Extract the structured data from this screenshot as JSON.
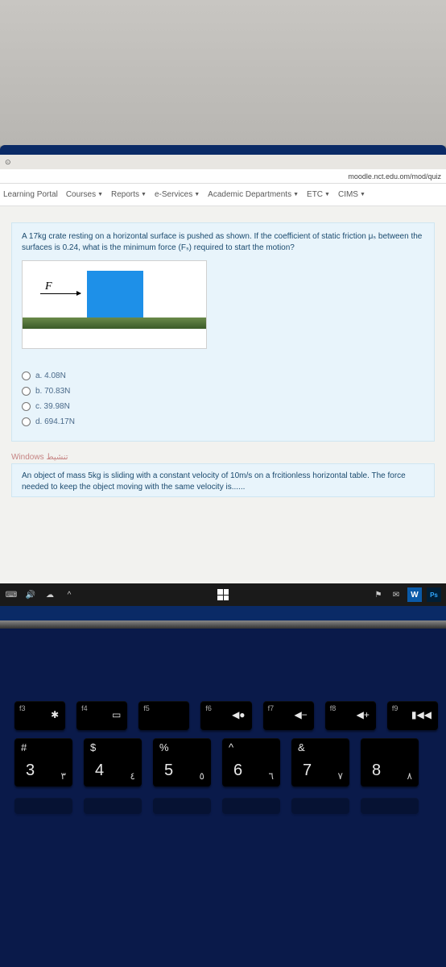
{
  "browser": {
    "url": "moodle.nct.edu.om/mod/quiz",
    "tab_icon": "⊙"
  },
  "nav": {
    "brand": "Learning Portal",
    "items": [
      "Courses",
      "Reports",
      "e-Services",
      "Academic Departments",
      "ETC",
      "CIMS"
    ]
  },
  "question1": {
    "text": "A 17kg crate resting on a horizontal surface is pushed as shown. If the coefficient of static friction μₛ between the surfaces is 0.24, what is the minimum force (Fₛ) required to start the motion?",
    "force_label": "F",
    "options": [
      {
        "key": "a",
        "label": "a. 4.08N"
      },
      {
        "key": "b",
        "label": "b. 70.83N"
      },
      {
        "key": "c",
        "label": "c. 39.98N"
      },
      {
        "key": "d",
        "label": "d. 694.17N"
      }
    ],
    "colors": {
      "card_bg": "#e8f4fb",
      "card_border": "#cfe6f2",
      "text": "#1a4a6e",
      "crate": "#1e90e8",
      "surface_top": "#6a8a4a",
      "surface_bottom": "#3a5a28"
    }
  },
  "watermark": "Windows تنشيط",
  "question2": {
    "text": "An object of mass 5kg is sliding with a constant velocity of 10m/s on a frcitionless horizontal table. The force needed to keep the object moving with the same velocity is......"
  },
  "taskbar": {
    "left_icons": [
      "speaker-icon",
      "cloud-icon",
      "chevron-up-icon"
    ],
    "right_icons": [
      "flag-icon",
      "envelope-icon",
      "word-icon",
      "photoshop-icon"
    ]
  },
  "keyboard": {
    "fn_row": [
      {
        "fn": "f3",
        "icon": "✱"
      },
      {
        "fn": "f4",
        "icon": "▭"
      },
      {
        "fn": "f5",
        "icon": ""
      },
      {
        "fn": "f6",
        "icon": "◀●"
      },
      {
        "fn": "f7",
        "icon": "◀−"
      },
      {
        "fn": "f8",
        "icon": "◀+"
      },
      {
        "fn": "f9",
        "icon": "▮◀◀"
      }
    ],
    "num_row": [
      {
        "top": "#",
        "main": "3",
        "alt": "٣"
      },
      {
        "top": "$",
        "main": "4",
        "alt": "٤"
      },
      {
        "top": "%",
        "main": "5",
        "alt": "٥"
      },
      {
        "top": "^",
        "main": "6",
        "alt": "٦"
      },
      {
        "top": "&",
        "main": "7",
        "alt": "٧"
      },
      {
        "top": "",
        "main": "8",
        "alt": "٨"
      }
    ]
  }
}
